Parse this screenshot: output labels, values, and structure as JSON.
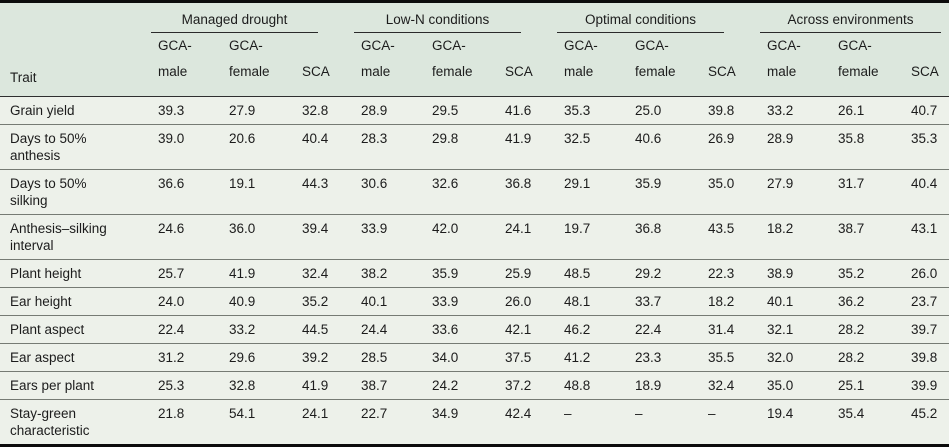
{
  "colors": {
    "header_background": "#dce7dd",
    "body_background": "#edf1ea",
    "outer_border": "#0c0c0c",
    "header_rule": "#2f2f2f",
    "row_separator": "#767b74",
    "text": "#1c1c1c"
  },
  "table": {
    "trait_header": "Trait",
    "groups": [
      {
        "label": "Managed drought"
      },
      {
        "label": "Low-N conditions"
      },
      {
        "label": "Optimal conditions"
      },
      {
        "label": "Across environments"
      }
    ],
    "subheaders": [
      "GCA-male",
      "GCA-female",
      "SCA"
    ],
    "rows": [
      {
        "trait": "Grain yield",
        "values": [
          "39.3",
          "27.9",
          "32.8",
          "28.9",
          "29.5",
          "41.6",
          "35.3",
          "25.0",
          "39.8",
          "33.2",
          "26.1",
          "40.7"
        ]
      },
      {
        "trait": "Days to 50% anthesis",
        "values": [
          "39.0",
          "20.6",
          "40.4",
          "28.3",
          "29.8",
          "41.9",
          "32.5",
          "40.6",
          "26.9",
          "28.9",
          "35.8",
          "35.3"
        ]
      },
      {
        "trait": "Days to 50% silking",
        "values": [
          "36.6",
          "19.1",
          "44.3",
          "30.6",
          "32.6",
          "36.8",
          "29.1",
          "35.9",
          "35.0",
          "27.9",
          "31.7",
          "40.4"
        ]
      },
      {
        "trait": "Anthesis–silking interval",
        "values": [
          "24.6",
          "36.0",
          "39.4",
          "33.9",
          "42.0",
          "24.1",
          "19.7",
          "36.8",
          "43.5",
          "18.2",
          "38.7",
          "43.1"
        ]
      },
      {
        "trait": "Plant height",
        "values": [
          "25.7",
          "41.9",
          "32.4",
          "38.2",
          "35.9",
          "25.9",
          "48.5",
          "29.2",
          "22.3",
          "38.9",
          "35.2",
          "26.0"
        ]
      },
      {
        "trait": "Ear height",
        "values": [
          "24.0",
          "40.9",
          "35.2",
          "40.1",
          "33.9",
          "26.0",
          "48.1",
          "33.7",
          "18.2",
          "40.1",
          "36.2",
          "23.7"
        ]
      },
      {
        "trait": "Plant aspect",
        "values": [
          "22.4",
          "33.2",
          "44.5",
          "24.4",
          "33.6",
          "42.1",
          "46.2",
          "22.4",
          "31.4",
          "32.1",
          "28.2",
          "39.7"
        ]
      },
      {
        "trait": "Ear aspect",
        "values": [
          "31.2",
          "29.6",
          "39.2",
          "28.5",
          "34.0",
          "37.5",
          "41.2",
          "23.3",
          "35.5",
          "32.0",
          "28.2",
          "39.8"
        ]
      },
      {
        "trait": "Ears per plant",
        "values": [
          "25.3",
          "32.8",
          "41.9",
          "38.7",
          "24.2",
          "37.2",
          "48.8",
          "18.9",
          "32.4",
          "35.0",
          "25.1",
          "39.9"
        ]
      },
      {
        "trait": "Stay-green characteristic",
        "values": [
          "21.8",
          "54.1",
          "24.1",
          "22.7",
          "34.9",
          "42.4",
          "–",
          "–",
          "–",
          "19.4",
          "35.4",
          "45.2"
        ]
      }
    ]
  }
}
